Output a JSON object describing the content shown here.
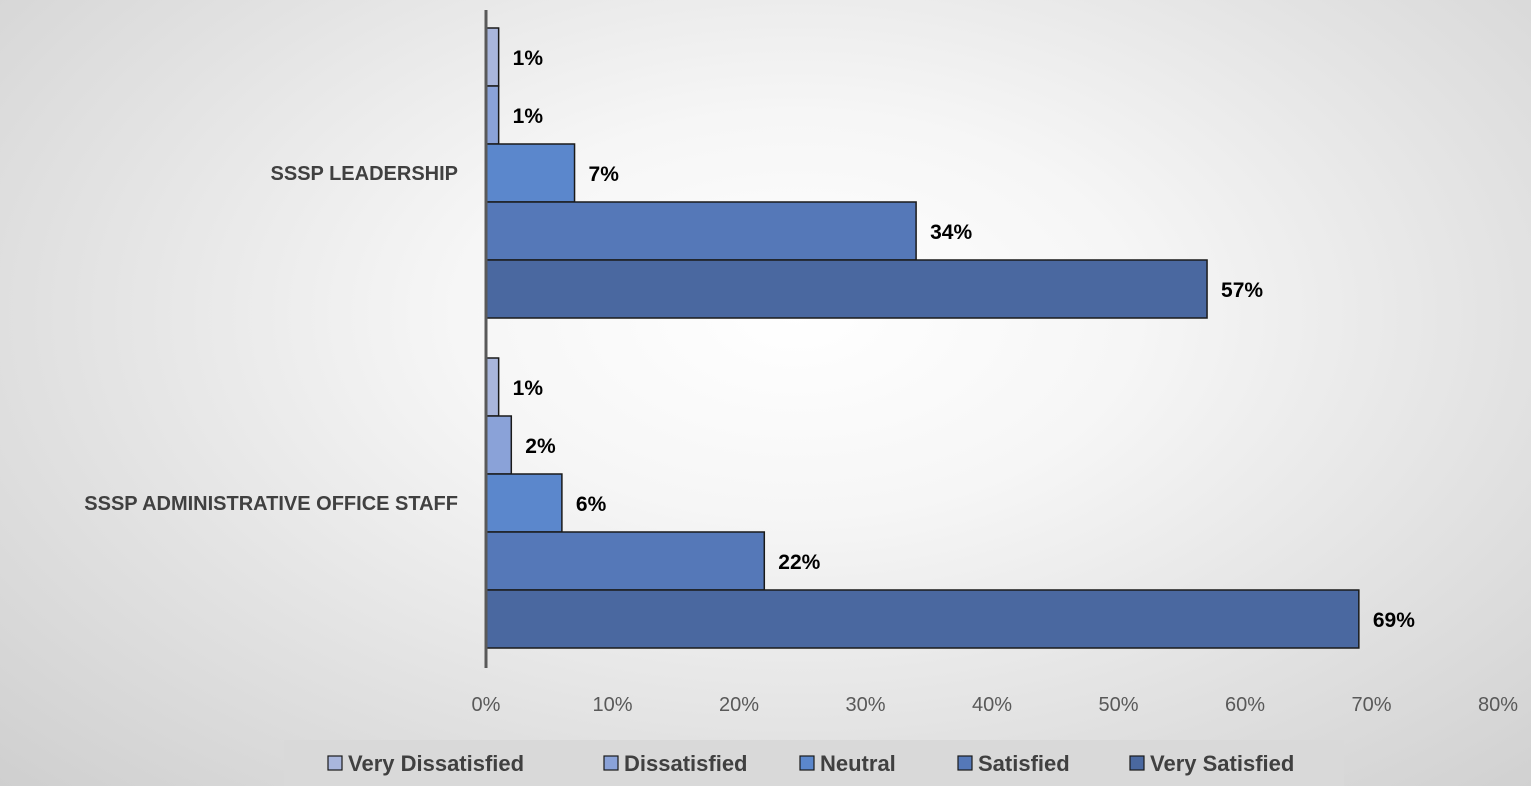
{
  "chart_data": {
    "type": "bar",
    "orientation": "horizontal",
    "categories": [
      "SSSP ADMINISTRATIVE OFFICE STAFF",
      "SSSP LEADERSHIP"
    ],
    "series": [
      {
        "name": "Very Dissatisfied",
        "values": [
          1,
          1
        ],
        "labels": [
          "1%",
          "1%"
        ],
        "color": "#a9b6dc"
      },
      {
        "name": "Dissatisfied",
        "values": [
          2,
          1
        ],
        "labels": [
          "2%",
          "1%"
        ],
        "color": "#8aa2d8"
      },
      {
        "name": "Neutral",
        "values": [
          6,
          7
        ],
        "labels": [
          "6%",
          "7%"
        ],
        "color": "#5b87cc"
      },
      {
        "name": "Satisfied",
        "values": [
          22,
          34
        ],
        "labels": [
          "22%",
          "34%"
        ],
        "color": "#5578b8"
      },
      {
        "name": "Very Satisfied",
        "values": [
          69,
          57
        ],
        "labels": [
          "69%",
          "57%"
        ],
        "color": "#4a68a0"
      }
    ],
    "xlim": [
      0,
      80
    ],
    "xticks": [
      0,
      10,
      20,
      30,
      40,
      50,
      60,
      70,
      80
    ],
    "xtick_labels": [
      "0%",
      "10%",
      "20%",
      "30%",
      "40%",
      "50%",
      "60%",
      "70%",
      "80%"
    ],
    "grid": false,
    "legend_position": "bottom",
    "background": "light gray radial gradient"
  }
}
